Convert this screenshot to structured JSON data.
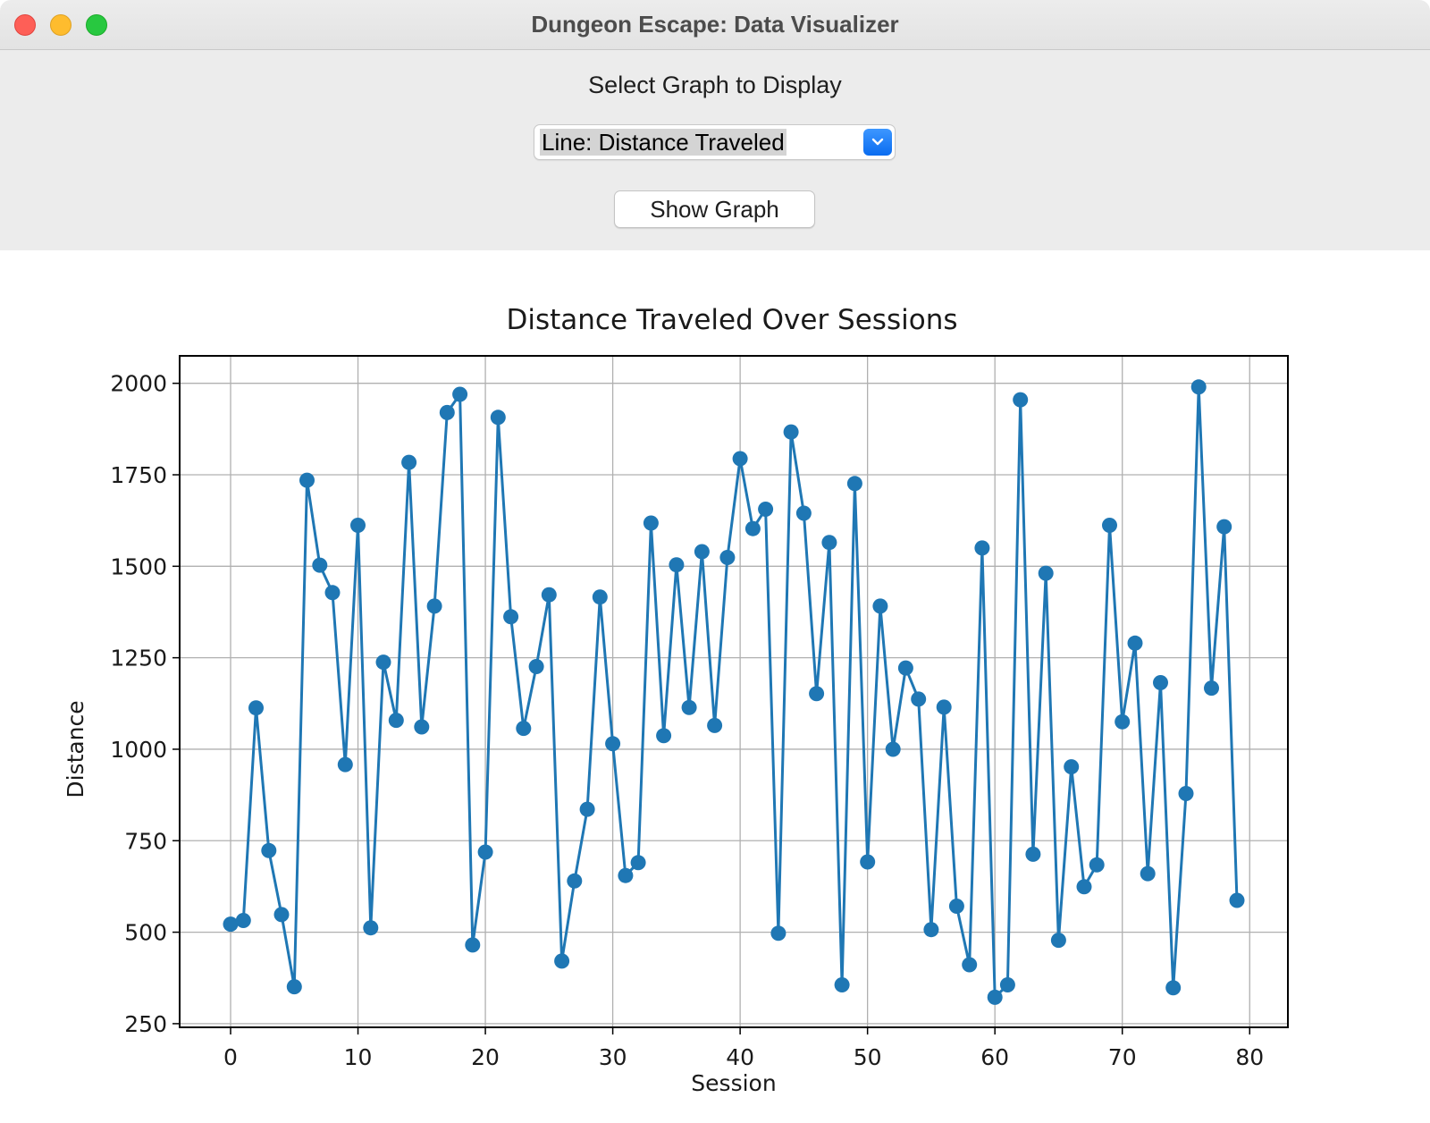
{
  "window": {
    "title": "Dungeon Escape: Data Visualizer"
  },
  "controls": {
    "select_label": "Select Graph to Display",
    "dropdown_value": "Line: Distance Traveled",
    "show_button_label": "Show Graph"
  },
  "icons": {
    "dropdown_arrow": "chevron-down-icon"
  },
  "colors": {
    "line": "#1f77b4",
    "dropdown_accent": "#1479f6",
    "close": "#fe5f57",
    "minimize": "#febc2e",
    "zoom": "#28c840"
  },
  "chart_data": {
    "type": "line",
    "title": "Distance Traveled Over Sessions",
    "xlabel": "Session",
    "ylabel": "Distance",
    "xlim": [
      -4,
      83
    ],
    "ylim": [
      240,
      2075
    ],
    "xticks": [
      0,
      10,
      20,
      30,
      40,
      50,
      60,
      70,
      80
    ],
    "yticks": [
      250,
      500,
      750,
      1000,
      1250,
      1500,
      1750,
      2000
    ],
    "grid": true,
    "markers": true,
    "series": [
      {
        "x": [
          0,
          1,
          2,
          3,
          4,
          5,
          6,
          7,
          8,
          9,
          10,
          11,
          12,
          13,
          14,
          15,
          16,
          17,
          18,
          19,
          20,
          21,
          22,
          23,
          24,
          25,
          26,
          27,
          28,
          29,
          30,
          31,
          32,
          33,
          34,
          35,
          36,
          37,
          38,
          39,
          40,
          41,
          42,
          43,
          44,
          45,
          46,
          47,
          48,
          49,
          50,
          51,
          52,
          53,
          54,
          55,
          56,
          57,
          58,
          59,
          60,
          61,
          62,
          63,
          64,
          65,
          66,
          67,
          68,
          69,
          70,
          71,
          72,
          73,
          74,
          75,
          76,
          77,
          78,
          79
        ],
        "values": [
          522,
          532,
          1113,
          723,
          548,
          351,
          1735,
          1503,
          1428,
          958,
          1612,
          512,
          1238,
          1079,
          1784,
          1061,
          1391,
          1920,
          1970,
          465,
          719,
          1907,
          1362,
          1057,
          1226,
          1422,
          421,
          640,
          836,
          1416,
          1015,
          655,
          690,
          1618,
          1037,
          1504,
          1114,
          1540,
          1065,
          1524,
          1794,
          1603,
          1656,
          497,
          1867,
          1645,
          1152,
          1565,
          356,
          1726,
          692,
          1391,
          1000,
          1222,
          1137,
          507,
          1115,
          571,
          411,
          1550,
          322,
          356,
          1955,
          713,
          1481,
          478,
          952,
          624,
          684,
          1612,
          1075,
          1290,
          660,
          1182,
          348,
          879,
          1990,
          1167,
          1608,
          587
        ]
      }
    ]
  }
}
